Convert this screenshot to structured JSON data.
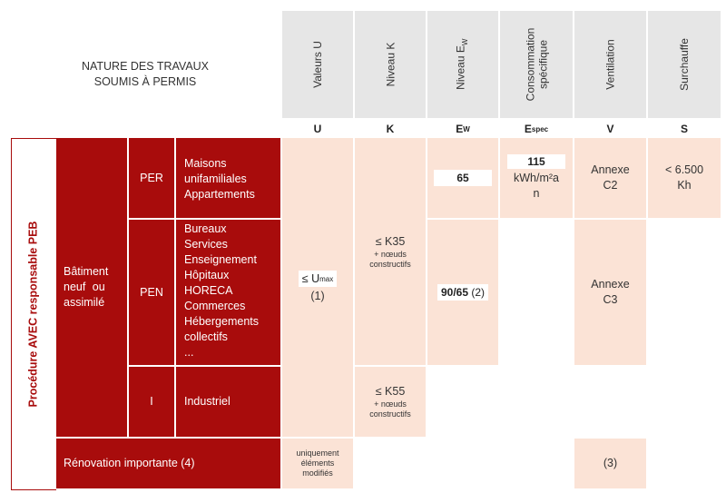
{
  "header": {
    "nature_line1": "NATURE DES TRAVAUX",
    "nature_line2": "SOUMIS À PERMIS",
    "columns": [
      {
        "label": "Valeurs U",
        "symbol": "U"
      },
      {
        "label": "Niveau K",
        "symbol": "K"
      },
      {
        "label": "Niveau E",
        "label_sub": "W",
        "symbol": "E",
        "symbol_sub": "W"
      },
      {
        "label_line1": "Consommation",
        "label_line2": "spécifique",
        "symbol": "E",
        "symbol_sub": "spec"
      },
      {
        "label": "Ventilation",
        "symbol": "V"
      },
      {
        "label": "Surchauffe",
        "symbol": "S"
      }
    ]
  },
  "side_label": "Procédure AVEC responsable PEB",
  "batiment": {
    "line1": "Bâtiment",
    "line2": "neuf ou",
    "line3": "assimilé"
  },
  "rows": {
    "per": {
      "code": "PER",
      "items": [
        "Maisons",
        "unifamiliales",
        "Appartements"
      ]
    },
    "pen": {
      "code": "PEN",
      "items": [
        "Bureaux",
        "Services",
        "Enseignement",
        "Hôpitaux",
        "HORECA",
        "Commerces",
        "Hébergements",
        "collectifs",
        "..."
      ]
    },
    "i": {
      "code": "I",
      "items": [
        "Industriel"
      ]
    },
    "renovation": "Rénovation importante (4)"
  },
  "values": {
    "u_main": "≤ U",
    "u_main_sub": "max",
    "u_note": "(1)",
    "u_renov": [
      "uniquement",
      "éléments",
      "modifiés"
    ],
    "k35": "≤ K35",
    "k35_note": [
      "+ nœuds",
      "constructifs"
    ],
    "k55": "≤ K55",
    "k55_note": [
      "+ nœuds",
      "constructifs"
    ],
    "ew_per": "65",
    "ew_pen": "90/65",
    "ew_pen_note": "(2)",
    "espec_value": "115",
    "espec_unit_line1": "kWh/m²a",
    "espec_unit_line2": "n",
    "vent_per": [
      "Annexe",
      "C2"
    ],
    "vent_pen": [
      "Annexe",
      "C3"
    ],
    "vent_renov": "(3)",
    "surch_per": [
      "< 6.500",
      "Kh"
    ]
  },
  "colors": {
    "dark_red": "#a80c0c",
    "light_pink": "#fbe3d6",
    "header_gray": "#e6e6e6"
  }
}
